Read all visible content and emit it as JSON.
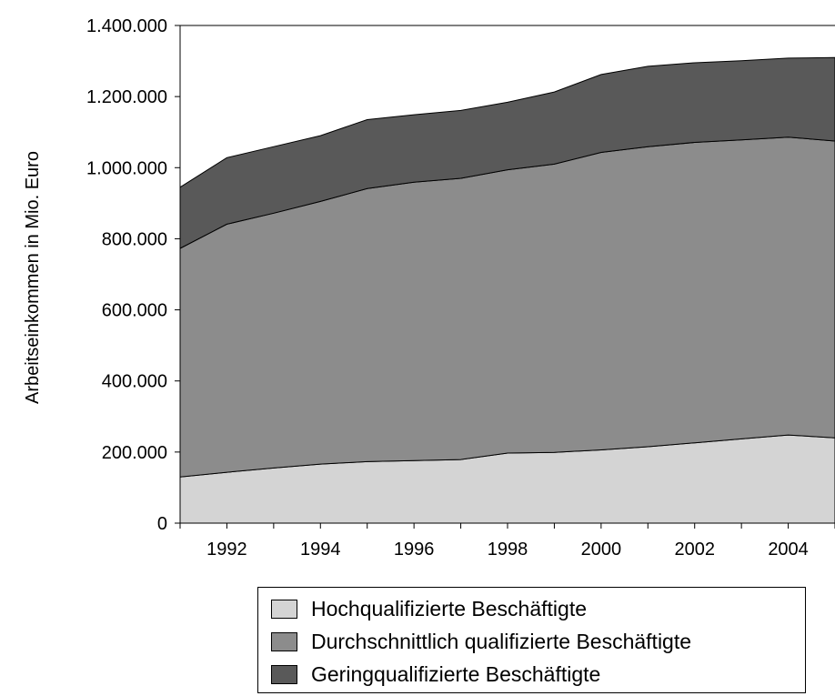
{
  "chart_data": {
    "type": "area",
    "stacked": true,
    "ylabel": "Arbeitseinkommen in Mio. Euro",
    "xlabel": "",
    "title": "",
    "x": [
      1991,
      1992,
      1993,
      1994,
      1995,
      1996,
      1997,
      1998,
      1999,
      2000,
      2001,
      2002,
      2003,
      2004,
      2005
    ],
    "xlim": [
      1991,
      2005
    ],
    "ylim": [
      0,
      1400000
    ],
    "x_ticks": [
      1992,
      1994,
      1996,
      1998,
      2000,
      2002,
      2004
    ],
    "x_tick_labels": [
      "1992",
      "1994",
      "1996",
      "1998",
      "2000",
      "2002",
      "2004"
    ],
    "y_ticks": [
      0,
      200000,
      400000,
      600000,
      800000,
      1000000,
      1200000,
      1400000
    ],
    "y_tick_labels": [
      "0",
      "200.000",
      "400.000",
      "600.000",
      "800.000",
      "1.000.000",
      "1.200.000",
      "1.400.000"
    ],
    "series": [
      {
        "name": "Hochqualifizierte Beschäftigte",
        "color": "#d4d4d4",
        "values": [
          130000,
          143000,
          155000,
          166000,
          173000,
          176000,
          179000,
          197000,
          199000,
          206000,
          215000,
          226000,
          237000,
          248000,
          240000
        ]
      },
      {
        "name": "Durchschnittlich qualifizierte Beschäftigte",
        "color": "#8c8c8c",
        "values": [
          643000,
          698000,
          717000,
          739000,
          768000,
          783000,
          791000,
          797000,
          811000,
          837000,
          844000,
          845000,
          841000,
          838000,
          835000
        ]
      },
      {
        "name": "Geringqualifizierte Beschäftigte",
        "color": "#595959",
        "values": [
          172000,
          187000,
          187000,
          185000,
          194000,
          190000,
          191000,
          190000,
          203000,
          219000,
          226000,
          224000,
          223000,
          222000,
          235000
        ]
      }
    ],
    "legend_position": "bottom",
    "grid": false
  }
}
